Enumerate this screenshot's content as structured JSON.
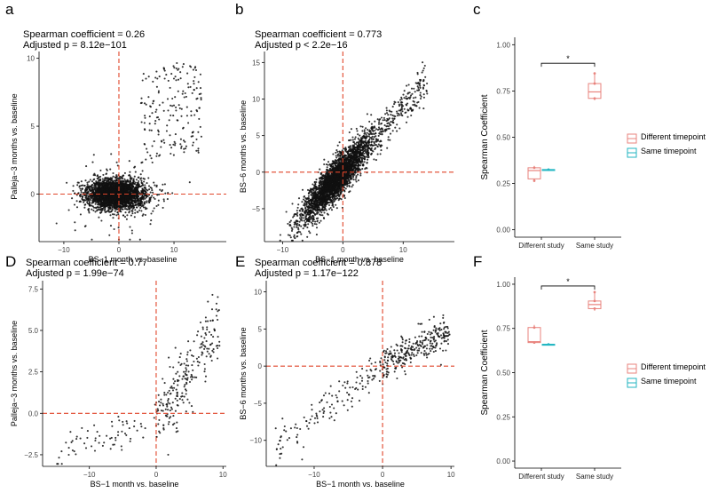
{
  "chart_data": [
    {
      "id": "a",
      "panel_label": "a",
      "type": "scatter",
      "annotation_line1": "Spearman coefficient = 0.26",
      "annotation_line2": "Adjusted p = 8.12e−101",
      "xlabel": "BS−1 month vs. baseline",
      "ylabel": "Palleja−3 months vs. baseline",
      "xlim": [
        -14.5,
        19.5
      ],
      "ylim": [
        -3.5,
        10.5
      ],
      "x_ticks": [
        {
          "v": -10,
          "label": "−10"
        },
        {
          "v": 0,
          "label": "0"
        },
        {
          "v": 10,
          "label": "10"
        }
      ],
      "y_ticks": [
        {
          "v": 0,
          "label": "0"
        },
        {
          "v": 5,
          "label": "5"
        },
        {
          "v": 10,
          "label": "10"
        }
      ],
      "ref_lines": {
        "x": 0,
        "y": 0
      },
      "point_generator": {
        "n": 3200,
        "seed": 11,
        "description": "approximate reproduction: dense cloud centred at origin with sparse upper-right cluster"
      }
    },
    {
      "id": "b",
      "panel_label": "b",
      "type": "scatter",
      "annotation_line1": "Spearman coefficient = 0.773",
      "annotation_line2": "Adjusted p < 2.2e−16",
      "xlabel": "BS−1 month vs. baseline",
      "ylabel": "BS−6 months vs. baseline",
      "xlim": [
        -13,
        18.5
      ],
      "ylim": [
        -9.5,
        16.5
      ],
      "x_ticks": [
        {
          "v": -10,
          "label": "−10"
        },
        {
          "v": 0,
          "label": "0"
        },
        {
          "v": 10,
          "label": "10"
        }
      ],
      "y_ticks": [
        {
          "v": -5,
          "label": "−5"
        },
        {
          "v": 0,
          "label": "0"
        },
        {
          "v": 5,
          "label": "5"
        },
        {
          "v": 10,
          "label": "10"
        },
        {
          "v": 15,
          "label": "15"
        }
      ],
      "ref_lines": {
        "x": 0,
        "y": 0
      },
      "point_generator": {
        "n": 3400,
        "seed": 22,
        "description": "approximate reproduction: strong diagonal positive correlation"
      }
    },
    {
      "id": "D",
      "panel_label": "D",
      "type": "scatter",
      "annotation_line1": "Spearman coefficient = 0.77",
      "annotation_line2": "Adjusted p = 1.99e−74",
      "xlabel": "BS−1 month vs. baseline",
      "ylabel": "Palleja−3 months vs. baseline",
      "xlim": [
        -17,
        10.5
      ],
      "ylim": [
        -3.2,
        8
      ],
      "x_ticks": [
        {
          "v": -10,
          "label": "−10"
        },
        {
          "v": 0,
          "label": "0"
        },
        {
          "v": 10,
          "label": "10"
        }
      ],
      "y_ticks": [
        {
          "v": -2.5,
          "label": "−2.5"
        },
        {
          "v": 0,
          "label": "0.0"
        },
        {
          "v": 2.5,
          "label": "2.5"
        },
        {
          "v": 5,
          "label": "5.0"
        },
        {
          "v": 7.5,
          "label": "7.5"
        }
      ],
      "ref_lines": {
        "x": 0,
        "y": 0
      },
      "point_generator": {
        "n": 300,
        "seed": 33,
        "description": "approximate reproduction of significant-feature scatter"
      }
    },
    {
      "id": "E",
      "panel_label": "E",
      "type": "scatter",
      "annotation_line1": "Spearman coefficient = 0.878",
      "annotation_line2": "Adjusted p = 1.17e−122",
      "xlabel": "BS−1 month vs. baseline",
      "ylabel": "BS−6 months vs. baseline",
      "xlim": [
        -17,
        10.5
      ],
      "ylim": [
        -13.5,
        11.5
      ],
      "x_ticks": [
        {
          "v": -10,
          "label": "−10"
        },
        {
          "v": 0,
          "label": "0"
        },
        {
          "v": 10,
          "label": "10"
        }
      ],
      "y_ticks": [
        {
          "v": -10,
          "label": "−10"
        },
        {
          "v": -5,
          "label": "−5"
        },
        {
          "v": 0,
          "label": "0"
        },
        {
          "v": 5,
          "label": "5"
        },
        {
          "v": 10,
          "label": "10"
        }
      ],
      "ref_lines": {
        "x": 0,
        "y": 0
      },
      "point_generator": {
        "n": 420,
        "seed": 44,
        "description": "approximate reproduction of significant-feature scatter"
      }
    },
    {
      "id": "c",
      "panel_label": "c",
      "type": "box",
      "ylabel": "Spearman Coefficient",
      "categories": [
        "Different study",
        "Same study"
      ],
      "ylim": [
        -0.04,
        1.04
      ],
      "y_ticks": [
        {
          "v": 0,
          "label": "0.00"
        },
        {
          "v": 0.25,
          "label": "0.25"
        },
        {
          "v": 0.5,
          "label": "0.50"
        },
        {
          "v": 0.75,
          "label": "0.75"
        },
        {
          "v": 1.0,
          "label": "1.00"
        }
      ],
      "series": [
        {
          "name": "Different timepoint",
          "color": "#e8837d",
          "boxes": [
            {
              "category": "Different study",
              "min": 0.265,
              "q1": 0.275,
              "median": 0.32,
              "q3": 0.335,
              "max": 0.345,
              "points": [
                0.265,
                0.335
              ]
            },
            {
              "category": "Same study",
              "min": 0.7,
              "q1": 0.71,
              "median": 0.745,
              "q3": 0.79,
              "max": 0.845,
              "points": [
                0.71,
                0.79,
                0.845
              ]
            }
          ]
        },
        {
          "name": "Same timepoint",
          "color": "#23b6c2",
          "boxes": [
            {
              "category": "Different study",
              "min": 0.325,
              "q1": 0.325,
              "median": 0.325,
              "q3": 0.325,
              "max": 0.325,
              "points": [
                0.325
              ]
            }
          ]
        }
      ],
      "significance": {
        "label": "*",
        "y": 0.9
      }
    },
    {
      "id": "F",
      "panel_label": "F",
      "type": "box",
      "ylabel": "Spearman Coefficient",
      "categories": [
        "Different study",
        "Same study"
      ],
      "ylim": [
        -0.04,
        1.04
      ],
      "y_ticks": [
        {
          "v": 0,
          "label": "0.00"
        },
        {
          "v": 0.25,
          "label": "0.25"
        },
        {
          "v": 0.5,
          "label": "0.50"
        },
        {
          "v": 0.75,
          "label": "0.75"
        },
        {
          "v": 1.0,
          "label": "1.00"
        }
      ],
      "series": [
        {
          "name": "Different timepoint",
          "color": "#e8837d",
          "boxes": [
            {
              "category": "Different study",
              "min": 0.665,
              "q1": 0.67,
              "median": 0.675,
              "q3": 0.755,
              "max": 0.77,
              "points": [
                0.67,
                0.755
              ]
            },
            {
              "category": "Same study",
              "min": 0.85,
              "q1": 0.862,
              "median": 0.885,
              "q3": 0.905,
              "max": 0.955,
              "points": [
                0.862,
                0.905,
                0.955
              ]
            }
          ]
        },
        {
          "name": "Same timepoint",
          "color": "#23b6c2",
          "boxes": [
            {
              "category": "Different study",
              "min": 0.66,
              "q1": 0.66,
              "median": 0.66,
              "q3": 0.66,
              "max": 0.66,
              "points": [
                0.66
              ]
            }
          ]
        }
      ],
      "significance": {
        "label": "*",
        "y": 0.99
      }
    }
  ],
  "legend": [
    {
      "label": "Different timepoint",
      "color": "#e8837d"
    },
    {
      "label": "Same timepoint",
      "color": "#23b6c2"
    }
  ]
}
